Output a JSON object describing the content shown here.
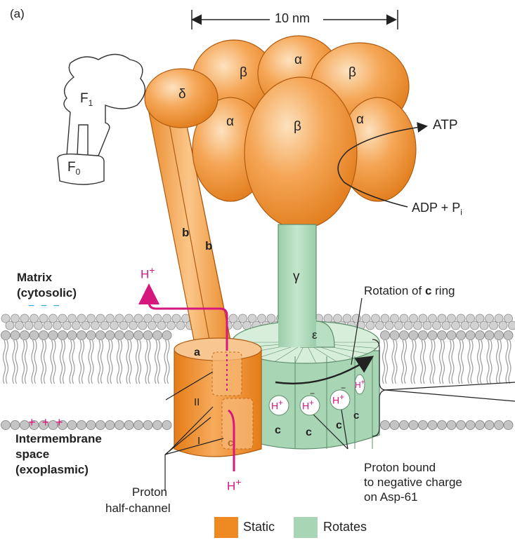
{
  "panel_label": "(a)",
  "scale": {
    "label": "10 nm"
  },
  "inset": {
    "f1": "F",
    "f1_sub": "1",
    "f0": "F",
    "f0_sub": "0"
  },
  "subunits": {
    "alpha": "α",
    "beta": "β",
    "delta": "δ",
    "gamma": "γ",
    "epsilon": "ε",
    "b": "b",
    "a": "a",
    "c": "c",
    "channel_one": "I",
    "channel_two": "II"
  },
  "proton": {
    "symbol": "H",
    "charge": "+",
    "neg": "−"
  },
  "labels": {
    "atp": "ATP",
    "adp": "ADP + P",
    "adp_sub": "i",
    "matrix_line1": "Matrix",
    "matrix_line2": "(cytosolic)",
    "matrix_charge": "− − −",
    "ims_charge": "+ + +",
    "ims_line1": "Intermembrane",
    "ims_line2": "space",
    "ims_line3": "(exoplasmic)",
    "rotation_prefix": "Rotation of ",
    "rotation_bold": "c",
    "rotation_suffix": " ring",
    "bound_line1": "Proton bound",
    "bound_line2": "to negative charge",
    "bound_line3": "on Asp-61",
    "halfchannel_line1": "Proton",
    "halfchannel_line2": "half-channel"
  },
  "legend": [
    {
      "label": "Static",
      "color": "#ef8a23"
    },
    {
      "label": "Rotates",
      "color": "#a8d6b4"
    }
  ],
  "colors": {
    "orange": "#ef8a23",
    "orange_light": "#f6b46c",
    "green": "#a8d6b4",
    "green_dark": "#6fa884",
    "magenta": "#d6177e",
    "blue": "#2ea6e0",
    "membrane": "#b9b9b9"
  }
}
